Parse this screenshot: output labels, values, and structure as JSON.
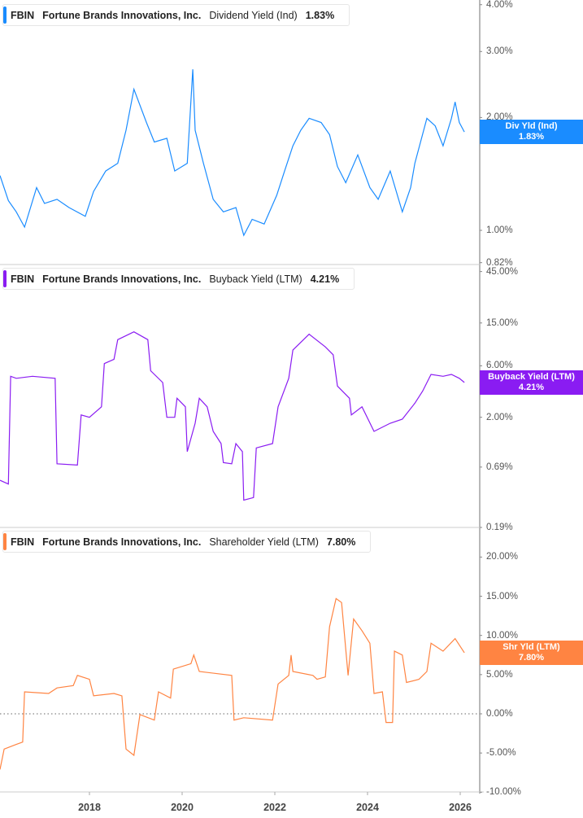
{
  "ticker": "FBIN",
  "company": "Fortune Brands Innovations, Inc.",
  "panels": [
    {
      "metric": "Dividend Yield (Ind)",
      "value": "1.83%",
      "tag": "Div Yld (Ind)",
      "color": "#1a8cff",
      "scale": "log",
      "ticks": [
        "4.00%",
        "3.00%",
        "2.00%",
        "1.00%",
        "0.82%"
      ],
      "data": [
        [
          2016.07,
          1.4
        ],
        [
          2016.25,
          1.2
        ],
        [
          2016.42,
          1.12
        ],
        [
          2016.6,
          1.02
        ],
        [
          2016.86,
          1.3
        ],
        [
          2017.03,
          1.18
        ],
        [
          2017.3,
          1.21
        ],
        [
          2017.56,
          1.15
        ],
        [
          2017.91,
          1.09
        ],
        [
          2018.09,
          1.27
        ],
        [
          2018.35,
          1.44
        ],
        [
          2018.61,
          1.51
        ],
        [
          2018.79,
          1.85
        ],
        [
          2018.96,
          2.38
        ],
        [
          2019.23,
          1.94
        ],
        [
          2019.4,
          1.72
        ],
        [
          2019.67,
          1.76
        ],
        [
          2019.84,
          1.44
        ],
        [
          2020.11,
          1.51
        ],
        [
          2020.23,
          2.69
        ],
        [
          2020.28,
          1.85
        ],
        [
          2020.46,
          1.51
        ],
        [
          2020.67,
          1.21
        ],
        [
          2020.89,
          1.12
        ],
        [
          2021.16,
          1.15
        ],
        [
          2021.33,
          0.97
        ],
        [
          2021.51,
          1.07
        ],
        [
          2021.77,
          1.04
        ],
        [
          2022.04,
          1.24
        ],
        [
          2022.21,
          1.44
        ],
        [
          2022.39,
          1.68
        ],
        [
          2022.56,
          1.85
        ],
        [
          2022.74,
          1.99
        ],
        [
          2023.0,
          1.94
        ],
        [
          2023.18,
          1.8
        ],
        [
          2023.35,
          1.48
        ],
        [
          2023.53,
          1.34
        ],
        [
          2023.79,
          1.59
        ],
        [
          2024.05,
          1.3
        ],
        [
          2024.23,
          1.21
        ],
        [
          2024.49,
          1.44
        ],
        [
          2024.75,
          1.12
        ],
        [
          2024.93,
          1.3
        ],
        [
          2025.02,
          1.51
        ],
        [
          2025.28,
          1.99
        ],
        [
          2025.46,
          1.9
        ],
        [
          2025.63,
          1.68
        ],
        [
          2025.81,
          1.99
        ],
        [
          2025.89,
          2.2
        ],
        [
          2025.98,
          1.94
        ],
        [
          2026.09,
          1.83
        ]
      ]
    },
    {
      "metric": "Buyback Yield (LTM)",
      "value": "4.21%",
      "tag": "Buyback Yield (LTM)",
      "color": "#8a1cf2",
      "scale": "log",
      "ticks": [
        "45.00%",
        "15.00%",
        "6.00%",
        "2.00%",
        "0.69%",
        "0.19%"
      ],
      "data": [
        [
          2016.07,
          0.52
        ],
        [
          2016.25,
          0.48
        ],
        [
          2016.3,
          4.8
        ],
        [
          2016.42,
          4.6
        ],
        [
          2016.77,
          4.8
        ],
        [
          2017.26,
          4.6
        ],
        [
          2017.3,
          0.74
        ],
        [
          2017.74,
          0.72
        ],
        [
          2017.82,
          2.1
        ],
        [
          2018.0,
          2.0
        ],
        [
          2018.26,
          2.5
        ],
        [
          2018.32,
          6.3
        ],
        [
          2018.53,
          6.9
        ],
        [
          2018.61,
          10.5
        ],
        [
          2018.96,
          12.4
        ],
        [
          2019.26,
          10.5
        ],
        [
          2019.32,
          5.4
        ],
        [
          2019.58,
          4.2
        ],
        [
          2019.67,
          2.0
        ],
        [
          2019.84,
          2.0
        ],
        [
          2019.89,
          3.0
        ],
        [
          2020.07,
          2.5
        ],
        [
          2020.11,
          0.96
        ],
        [
          2020.28,
          1.76
        ],
        [
          2020.37,
          3.0
        ],
        [
          2020.54,
          2.5
        ],
        [
          2020.67,
          1.48
        ],
        [
          2020.84,
          1.14
        ],
        [
          2020.89,
          0.76
        ],
        [
          2021.07,
          0.74
        ],
        [
          2021.16,
          1.14
        ],
        [
          2021.3,
          0.96
        ],
        [
          2021.33,
          0.34
        ],
        [
          2021.54,
          0.36
        ],
        [
          2021.6,
          1.04
        ],
        [
          2021.95,
          1.14
        ],
        [
          2022.07,
          2.5
        ],
        [
          2022.3,
          4.6
        ],
        [
          2022.39,
          8.4
        ],
        [
          2022.74,
          11.8
        ],
        [
          2023.09,
          9.0
        ],
        [
          2023.26,
          7.6
        ],
        [
          2023.35,
          3.9
        ],
        [
          2023.61,
          3.0
        ],
        [
          2023.65,
          2.1
        ],
        [
          2023.88,
          2.5
        ],
        [
          2024.14,
          1.48
        ],
        [
          2024.49,
          1.76
        ],
        [
          2024.75,
          1.92
        ],
        [
          2025.02,
          2.7
        ],
        [
          2025.19,
          3.5
        ],
        [
          2025.37,
          5.0
        ],
        [
          2025.63,
          4.8
        ],
        [
          2025.81,
          5.0
        ],
        [
          2025.98,
          4.6
        ],
        [
          2026.09,
          4.21
        ]
      ]
    },
    {
      "metric": "Shareholder Yield (LTM)",
      "value": "7.80%",
      "tag": "Shr Yld (LTM)",
      "color": "#ff8442",
      "scale": "linear",
      "ticks": [
        "20.00%",
        "15.00%",
        "10.00%",
        "5.00%",
        "0.00%",
        "-5.00%",
        "-10.00%"
      ],
      "data": [
        [
          2016.07,
          -7.1
        ],
        [
          2016.16,
          -4.5
        ],
        [
          2016.42,
          -3.9
        ],
        [
          2016.56,
          -3.6
        ],
        [
          2016.6,
          2.8
        ],
        [
          2017.12,
          2.6
        ],
        [
          2017.3,
          3.3
        ],
        [
          2017.65,
          3.6
        ],
        [
          2017.74,
          4.9
        ],
        [
          2018.0,
          4.4
        ],
        [
          2018.09,
          2.3
        ],
        [
          2018.53,
          2.6
        ],
        [
          2018.7,
          2.3
        ],
        [
          2018.79,
          -4.5
        ],
        [
          2018.96,
          -5.3
        ],
        [
          2019.09,
          -0.1
        ],
        [
          2019.4,
          -0.8
        ],
        [
          2019.49,
          2.8
        ],
        [
          2019.75,
          2.0
        ],
        [
          2019.81,
          5.7
        ],
        [
          2020.19,
          6.4
        ],
        [
          2020.25,
          7.5
        ],
        [
          2020.37,
          5.4
        ],
        [
          2021.07,
          4.9
        ],
        [
          2021.12,
          -0.8
        ],
        [
          2021.33,
          -0.5
        ],
        [
          2021.95,
          -0.8
        ],
        [
          2022.07,
          3.8
        ],
        [
          2022.3,
          4.9
        ],
        [
          2022.35,
          7.5
        ],
        [
          2022.39,
          5.4
        ],
        [
          2022.82,
          4.9
        ],
        [
          2022.91,
          4.4
        ],
        [
          2023.09,
          4.7
        ],
        [
          2023.18,
          11.1
        ],
        [
          2023.32,
          14.7
        ],
        [
          2023.44,
          14.2
        ],
        [
          2023.58,
          4.9
        ],
        [
          2023.7,
          12.1
        ],
        [
          2023.88,
          10.6
        ],
        [
          2024.05,
          9.0
        ],
        [
          2024.14,
          2.6
        ],
        [
          2024.32,
          2.8
        ],
        [
          2024.4,
          -1.1
        ],
        [
          2024.54,
          -1.1
        ],
        [
          2024.58,
          8.0
        ],
        [
          2024.75,
          7.5
        ],
        [
          2024.84,
          4.0
        ],
        [
          2025.11,
          4.4
        ],
        [
          2025.28,
          5.4
        ],
        [
          2025.37,
          9.0
        ],
        [
          2025.63,
          8.0
        ],
        [
          2025.89,
          9.6
        ],
        [
          2026.09,
          7.8
        ]
      ]
    }
  ],
  "x_ticks": [
    "2018",
    "2020",
    "2022",
    "2024",
    "2026"
  ],
  "chart_data": {
    "type": "line",
    "xlim": [
      2016.07,
      2026.4
    ],
    "x_ticks": [
      "2018",
      "2020",
      "2022",
      "2024",
      "2026"
    ],
    "panels_ylim": [
      [
        0.82,
        4.0
      ],
      [
        0.19,
        45
      ],
      [
        -10,
        20
      ]
    ],
    "grid": false
  }
}
